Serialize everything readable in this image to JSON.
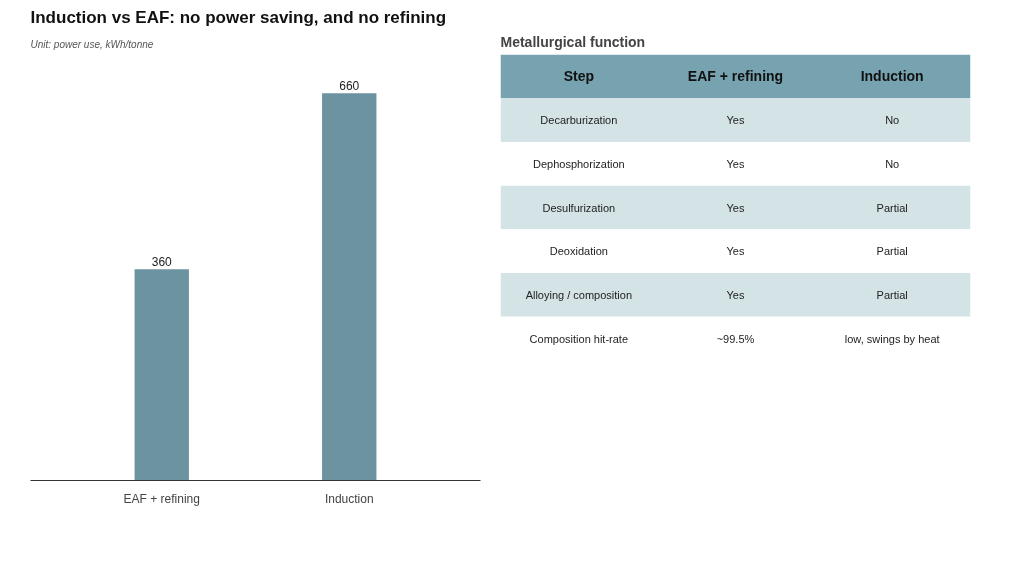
{
  "chart_data": [
    {
      "type": "bar",
      "title": "Induction vs EAF: no power saving, and no refining",
      "subtitle": "Unit: power use, kWh/tonne",
      "categories": [
        "EAF + refining",
        "Induction"
      ],
      "values": [
        360,
        660
      ],
      "color": "#6b93a0",
      "data_labels": true
    },
    {
      "type": "other",
      "title": "Metallurgical function",
      "categories": [
        "Step",
        "EAF + refining",
        "Induction"
      ],
      "y_categories": [
        "Decarburization",
        "Dephosphorization",
        "Desulfurization",
        "Deoxidation",
        "Alloying / composition",
        "Composition hit-rate"
      ],
      "cell_labels": [
        [
          "Yes",
          "No"
        ],
        [
          "Yes",
          "No"
        ],
        [
          "Yes",
          "Partial"
        ],
        [
          "Yes",
          "Partial"
        ],
        [
          "Yes",
          "Partial"
        ],
        [
          "~99.5%",
          "low, swings by heat"
        ]
      ]
    }
  ]
}
